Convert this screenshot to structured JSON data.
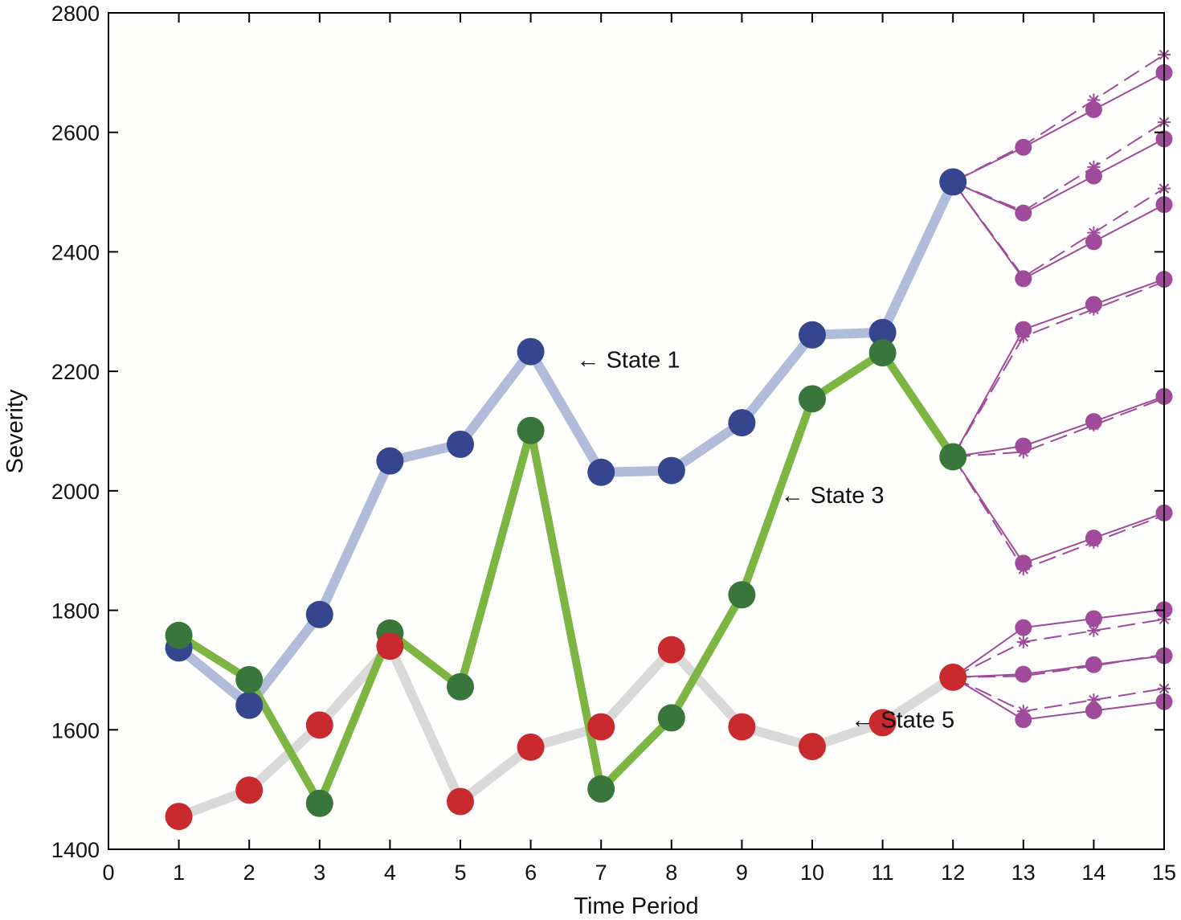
{
  "chart_data": {
    "type": "line",
    "xlabel": "Time Period",
    "ylabel": "Severity",
    "xlim": [
      0,
      15
    ],
    "ylim": [
      1400,
      2800
    ],
    "xticks": [
      "0",
      "1",
      "2",
      "3",
      "4",
      "5",
      "6",
      "7",
      "8",
      "9",
      "10",
      "11",
      "12",
      "13",
      "14",
      "15"
    ],
    "yticks": [
      "1400",
      "1600",
      "1800",
      "2000",
      "2200",
      "2400",
      "2600",
      "2800"
    ],
    "grid": false,
    "series": [
      {
        "key": "state1",
        "x": [
          1,
          2,
          3,
          4,
          5,
          6,
          7,
          8,
          9,
          10,
          11,
          12
        ],
        "values": [
          1737,
          1641,
          1793,
          2050,
          2078,
          2233,
          2031,
          2034,
          2114,
          2261,
          2265,
          2517
        ],
        "line_color": "#b1bcdb",
        "marker_color": "#35468f"
      },
      {
        "key": "state5",
        "x": [
          1,
          2,
          3,
          4,
          5,
          6,
          7,
          8,
          9,
          10,
          11,
          12
        ],
        "values": [
          1455,
          1499,
          1608,
          1740,
          1480,
          1571,
          1605,
          1734,
          1605,
          1572,
          1612,
          1688
        ],
        "line_color": "#d9d9d9",
        "marker_color": "#c92a2e"
      },
      {
        "key": "state3",
        "x": [
          1,
          2,
          3,
          4,
          5,
          6,
          7,
          8,
          9,
          10,
          11,
          12
        ],
        "values": [
          1758,
          1684,
          1477,
          1762,
          1672,
          2101,
          1501,
          1620,
          1826,
          2154,
          2231,
          2057
        ],
        "line_color": "#7cb542",
        "marker_color": "#38763c"
      }
    ],
    "forecast_color": "#a04a9c",
    "forecasts": [
      {
        "origin": [
          12,
          2517
        ],
        "x": [
          13,
          14,
          15
        ],
        "predicted": [
          2575,
          2638,
          2700
        ],
        "actual": [
          2578,
          2654,
          2730
        ]
      },
      {
        "origin": [
          12,
          2517
        ],
        "x": [
          13,
          14,
          15
        ],
        "predicted": [
          2465,
          2527,
          2589
        ],
        "actual": [
          2468,
          2542,
          2617
        ]
      },
      {
        "origin": [
          12,
          2517
        ],
        "x": [
          13,
          14,
          15
        ],
        "predicted": [
          2355,
          2417,
          2479
        ],
        "actual": [
          2358,
          2432,
          2506
        ]
      },
      {
        "origin": [
          12,
          2057
        ],
        "x": [
          13,
          14,
          15
        ],
        "predicted": [
          2270,
          2312,
          2354
        ],
        "actual": [
          2258,
          2304,
          2350
        ]
      },
      {
        "origin": [
          12,
          2057
        ],
        "x": [
          13,
          14,
          15
        ],
        "predicted": [
          2075,
          2116,
          2158
        ],
        "actual": [
          2065,
          2110,
          2155
        ]
      },
      {
        "origin": [
          12,
          2057
        ],
        "x": [
          13,
          14,
          15
        ],
        "predicted": [
          1879,
          1921,
          1963
        ],
        "actual": [
          1869,
          1914,
          1959
        ]
      },
      {
        "origin": [
          12,
          1688
        ],
        "x": [
          13,
          14,
          15
        ],
        "predicted": [
          1771,
          1786,
          1801
        ],
        "actual": [
          1747,
          1766,
          1785
        ]
      },
      {
        "origin": [
          12,
          1688
        ],
        "x": [
          13,
          14,
          15
        ],
        "predicted": [
          1693,
          1709,
          1724
        ],
        "actual": [
          1690,
          1707,
          1726
        ]
      },
      {
        "origin": [
          12,
          1688
        ],
        "x": [
          13,
          14,
          15
        ],
        "predicted": [
          1617,
          1632,
          1647
        ],
        "actual": [
          1631,
          1650,
          1669
        ]
      }
    ],
    "annotations": [
      {
        "text": "← State 1",
        "x": 6.65,
        "y": 2220
      },
      {
        "text": "← State 3",
        "x": 9.55,
        "y": 1993
      },
      {
        "text": "← State 5",
        "x": 10.55,
        "y": 1617
      }
    ]
  }
}
